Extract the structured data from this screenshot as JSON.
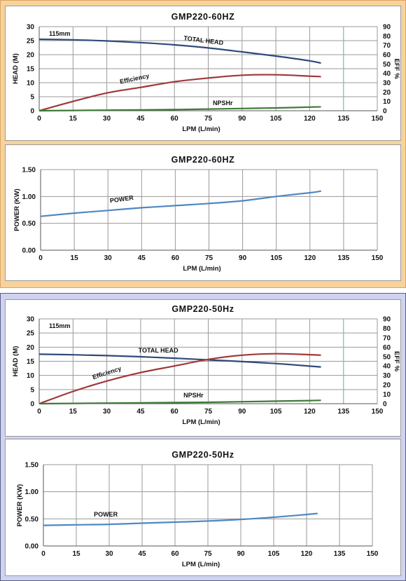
{
  "colors": {
    "panel_60hz_bg": "#f8d29b",
    "panel_50hz_bg": "#cfd3f0",
    "head_line": "#2f4a7a",
    "efficiency_line": "#a0383a",
    "npshr_line": "#3f7a38",
    "power_line": "#4f88c2",
    "grid": "#9a9a9a",
    "marker_line": "#7fc8c0"
  },
  "chart_data": [
    {
      "id": "head-60",
      "type": "line",
      "title": "GMP220-60HZ",
      "xlabel": "LPM (L/min)",
      "ylabel": "HEAD (M)",
      "y2label": "EFF %",
      "xlim": [
        0,
        150
      ],
      "ylim": [
        0,
        30
      ],
      "y2lim": [
        0,
        90
      ],
      "xticks": [
        "0",
        "15",
        "30",
        "45",
        "60",
        "75",
        "90",
        "105",
        "120",
        "135",
        "150"
      ],
      "yticks": [
        "0",
        "5",
        "10",
        "15",
        "20",
        "25",
        "30"
      ],
      "y2ticks": [
        "0",
        "10",
        "20",
        "30",
        "40",
        "50",
        "60",
        "70",
        "80",
        "90"
      ],
      "grid": true,
      "marker_x": 135,
      "annotations": {
        "impeller": "115mm"
      },
      "series": [
        {
          "name": "TOTAL HEAD",
          "axis": "y",
          "color": "#2f4a7a",
          "label_at": [
            64,
            25.2
          ],
          "label_rot": 7,
          "x": [
            0,
            15,
            30,
            45,
            60,
            75,
            90,
            105,
            120,
            125
          ],
          "y": [
            25.5,
            25.3,
            24.9,
            24.3,
            23.5,
            22.4,
            21.0,
            19.5,
            17.8,
            17.0
          ]
        },
        {
          "name": "Efficiency",
          "axis": "y2",
          "color": "#a0383a",
          "label_at": [
            36,
            9.6
          ],
          "label_rot": -12,
          "x": [
            0,
            15,
            30,
            45,
            60,
            75,
            90,
            105,
            120,
            125
          ],
          "y": [
            0,
            10,
            19,
            25,
            31,
            35,
            38,
            38.5,
            37,
            36.5
          ]
        },
        {
          "name": "NPSHr",
          "axis": "y",
          "color": "#3f7a38",
          "label_at": [
            77,
            2.0
          ],
          "label_rot": 0,
          "x": [
            0,
            15,
            30,
            45,
            60,
            75,
            90,
            105,
            120,
            125
          ],
          "y": [
            0.0,
            0.1,
            0.2,
            0.3,
            0.4,
            0.6,
            0.8,
            1.0,
            1.3,
            1.4
          ]
        }
      ]
    },
    {
      "id": "power-60",
      "type": "line",
      "title": "GMP220-60HZ",
      "xlabel": "LPM  (L/min)",
      "ylabel": "POWER (KW)",
      "xlim": [
        0,
        150
      ],
      "ylim": [
        0,
        1.5
      ],
      "xticks": [
        "0",
        "15",
        "30",
        "45",
        "60",
        "75",
        "90",
        "105",
        "120",
        "135",
        "150"
      ],
      "yticks": [
        "0.00",
        "0.50",
        "1.00",
        "1.50"
      ],
      "grid": true,
      "series": [
        {
          "name": "POWER",
          "axis": "y",
          "color": "#4f88c2",
          "label_at": [
            31,
            0.88
          ],
          "label_rot": -8,
          "x": [
            0,
            15,
            30,
            45,
            60,
            75,
            90,
            105,
            120,
            125
          ],
          "y": [
            0.63,
            0.69,
            0.74,
            0.79,
            0.83,
            0.87,
            0.92,
            1.0,
            1.07,
            1.1
          ]
        }
      ]
    },
    {
      "id": "head-50",
      "type": "line",
      "title": "GMP220-50Hz",
      "xlabel": "LPM (L/min)",
      "ylabel": "HEAD (M)",
      "y2label": "EFF %",
      "xlim": [
        0,
        150
      ],
      "ylim": [
        0,
        30
      ],
      "y2lim": [
        0,
        90
      ],
      "xticks": [
        "0",
        "15",
        "30",
        "45",
        "60",
        "75",
        "90",
        "105",
        "120",
        "135",
        "150"
      ],
      "yticks": [
        "0",
        "5",
        "10",
        "15",
        "20",
        "25",
        "30"
      ],
      "y2ticks": [
        "0",
        "10",
        "20",
        "30",
        "40",
        "50",
        "60",
        "70",
        "80",
        "90"
      ],
      "grid": true,
      "marker_x": 135,
      "annotations": {
        "impeller": "115mm"
      },
      "series": [
        {
          "name": "TOTAL HEAD",
          "axis": "y",
          "color": "#2f4a7a",
          "label_at": [
            44,
            18.1
          ],
          "label_rot": 0,
          "x": [
            0,
            15,
            30,
            45,
            60,
            75,
            90,
            105,
            120,
            125
          ],
          "y": [
            17.5,
            17.3,
            17.0,
            16.6,
            16.1,
            15.5,
            14.9,
            14.2,
            13.3,
            13.0
          ]
        },
        {
          "name": "Efficiency",
          "axis": "y2",
          "color": "#a0383a",
          "label_at": [
            24,
            8.6
          ],
          "label_rot": -18,
          "x": [
            0,
            15,
            30,
            45,
            60,
            75,
            90,
            105,
            120,
            125
          ],
          "y": [
            0,
            13,
            24,
            33,
            40,
            47,
            51.5,
            53,
            52,
            51.5
          ]
        },
        {
          "name": "NPSHr",
          "axis": "y",
          "color": "#3f7a38",
          "label_at": [
            64,
            2.2
          ],
          "label_rot": 0,
          "x": [
            0,
            15,
            30,
            45,
            60,
            75,
            90,
            105,
            120,
            125
          ],
          "y": [
            0.0,
            0.1,
            0.2,
            0.3,
            0.4,
            0.5,
            0.7,
            0.9,
            1.1,
            1.2
          ]
        }
      ]
    },
    {
      "id": "power-50",
      "type": "line",
      "title": "GMP220-50Hz",
      "xlabel": "LPM  (L/min)",
      "ylabel": "POWER (KW)",
      "xlim": [
        0,
        150
      ],
      "ylim": [
        0,
        1.5
      ],
      "xticks": [
        "0",
        "15",
        "30",
        "45",
        "60",
        "75",
        "90",
        "105",
        "120",
        "135",
        "150"
      ],
      "yticks": [
        "0.00",
        "0.50",
        "1.00",
        "1.50"
      ],
      "grid": true,
      "series": [
        {
          "name": "POWER",
          "axis": "y",
          "color": "#4f88c2",
          "label_at": [
            23,
            0.54
          ],
          "label_rot": 0,
          "x": [
            0,
            15,
            30,
            45,
            60,
            75,
            90,
            105,
            120,
            125
          ],
          "y": [
            0.38,
            0.39,
            0.4,
            0.42,
            0.44,
            0.46,
            0.49,
            0.53,
            0.58,
            0.6
          ]
        }
      ]
    }
  ]
}
